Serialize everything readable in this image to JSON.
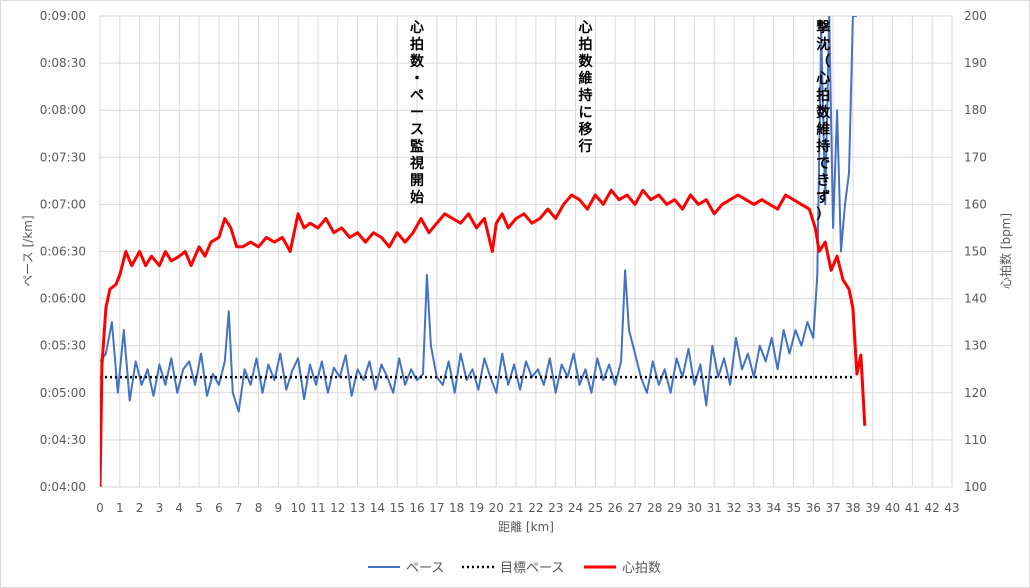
{
  "chart_data": {
    "type": "line",
    "xlabel": "距離 [km]",
    "ylabel_left": "ペース [/km]",
    "ylabel_right": "心拍数 [bpm]",
    "xlim": [
      0,
      43
    ],
    "x_ticks": [
      0,
      1,
      2,
      3,
      4,
      5,
      6,
      7,
      8,
      9,
      10,
      11,
      12,
      13,
      14,
      15,
      16,
      17,
      18,
      19,
      20,
      21,
      22,
      23,
      24,
      25,
      26,
      27,
      28,
      29,
      30,
      31,
      32,
      33,
      34,
      35,
      36,
      37,
      38,
      39,
      40,
      41,
      42,
      43
    ],
    "ylim_left_seconds": [
      240,
      540
    ],
    "y_ticks_left": [
      "0:04:00",
      "0:04:30",
      "0:05:00",
      "0:05:30",
      "0:06:00",
      "0:06:30",
      "0:07:00",
      "0:07:30",
      "0:08:00",
      "0:08:30",
      "0:09:00"
    ],
    "ylim_right": [
      100,
      200
    ],
    "y_ticks_right": [
      "100",
      "110",
      "120",
      "130",
      "140",
      "150",
      "160",
      "170",
      "180",
      "190",
      "200"
    ],
    "grid": true,
    "legend_position": "bottom",
    "colors": {
      "pace": "#4472c4",
      "target": "#000000",
      "hr": "#ff0000"
    },
    "series": [
      {
        "name": "ペース",
        "axis": "left",
        "x": [
          0,
          0.3,
          0.6,
          0.9,
          1.2,
          1.5,
          1.8,
          2.1,
          2.4,
          2.7,
          3,
          3.3,
          3.6,
          3.9,
          4.2,
          4.5,
          4.8,
          5.1,
          5.4,
          5.7,
          6,
          6.3,
          6.5,
          6.7,
          7,
          7.3,
          7.6,
          7.9,
          8.2,
          8.5,
          8.8,
          9.1,
          9.4,
          9.7,
          10,
          10.3,
          10.6,
          10.9,
          11.2,
          11.5,
          11.8,
          12.1,
          12.4,
          12.7,
          13,
          13.3,
          13.6,
          13.9,
          14.2,
          14.5,
          14.8,
          15.1,
          15.4,
          15.7,
          16,
          16.3,
          16.5,
          16.7,
          17,
          17.3,
          17.6,
          17.9,
          18.2,
          18.5,
          18.8,
          19.1,
          19.4,
          19.7,
          20,
          20.3,
          20.6,
          20.9,
          21.2,
          21.5,
          21.8,
          22.1,
          22.4,
          22.7,
          23,
          23.3,
          23.6,
          23.9,
          24.2,
          24.5,
          24.8,
          25.1,
          25.4,
          25.7,
          26,
          26.3,
          26.5,
          26.7,
          27,
          27.3,
          27.6,
          27.9,
          28.2,
          28.5,
          28.8,
          29.1,
          29.4,
          29.7,
          30,
          30.3,
          30.6,
          30.9,
          31.2,
          31.5,
          31.8,
          32.1,
          32.4,
          32.7,
          33,
          33.3,
          33.6,
          33.9,
          34.2,
          34.5,
          34.8,
          35.1,
          35.4,
          35.7,
          36,
          36.2,
          36.4,
          36.6,
          36.8,
          37,
          37.2,
          37.4,
          37.6,
          37.8,
          38,
          38.2
        ],
        "values_mmss": [
          "5:20",
          "5:25",
          "5:45",
          "5:00",
          "5:40",
          "4:55",
          "5:20",
          "5:05",
          "5:15",
          "4:58",
          "5:18",
          "5:05",
          "5:22",
          "5:00",
          "5:15",
          "5:20",
          "5:05",
          "5:25",
          "4:58",
          "5:12",
          "5:05",
          "5:20",
          "5:52",
          "5:00",
          "4:48",
          "5:15",
          "5:05",
          "5:22",
          "5:00",
          "5:18",
          "5:08",
          "5:25",
          "5:02",
          "5:14",
          "5:22",
          "4:56",
          "5:18",
          "5:05",
          "5:20",
          "5:00",
          "5:16",
          "5:10",
          "5:24",
          "4:58",
          "5:15",
          "5:08",
          "5:20",
          "5:02",
          "5:18",
          "5:10",
          "5:00",
          "5:22",
          "5:05",
          "5:15",
          "5:08",
          "5:12",
          "6:15",
          "5:30",
          "5:10",
          "5:05",
          "5:20",
          "5:00",
          "5:25",
          "5:08",
          "5:15",
          "5:02",
          "5:22",
          "5:10",
          "5:00",
          "5:25",
          "5:05",
          "5:18",
          "5:02",
          "5:20",
          "5:10",
          "5:15",
          "5:05",
          "5:22",
          "5:00",
          "5:18",
          "5:10",
          "5:25",
          "5:05",
          "5:15",
          "5:00",
          "5:22",
          "5:08",
          "5:18",
          "5:05",
          "5:20",
          "6:18",
          "5:40",
          "5:25",
          "5:10",
          "5:00",
          "5:20",
          "5:05",
          "5:15",
          "5:00",
          "5:22",
          "5:10",
          "5:28",
          "5:05",
          "5:18",
          "4:52",
          "5:30",
          "5:10",
          "5:22",
          "5:05",
          "5:35",
          "5:15",
          "5:25",
          "5:10",
          "5:30",
          "5:20",
          "5:35",
          "5:15",
          "5:40",
          "5:25",
          "5:40",
          "5:30",
          "5:45",
          "5:35",
          "6:15",
          "8:50",
          "7:00",
          "9:00",
          "6:45",
          "8:00",
          "6:30",
          "7:00",
          "7:20",
          "9:00",
          "9:00"
        ]
      },
      {
        "name": "目標ペース",
        "axis": "left",
        "x": [
          0,
          38
        ],
        "values_mmss": [
          "5:10",
          "5:10"
        ]
      },
      {
        "name": "心拍数",
        "axis": "right",
        "x": [
          0,
          0.1,
          0.3,
          0.5,
          0.8,
          1,
          1.3,
          1.6,
          2,
          2.3,
          2.6,
          3,
          3.3,
          3.6,
          4,
          4.3,
          4.6,
          5,
          5.3,
          5.6,
          6,
          6.3,
          6.6,
          6.9,
          7.2,
          7.6,
          8,
          8.4,
          8.8,
          9.2,
          9.6,
          10,
          10.3,
          10.6,
          11,
          11.4,
          11.8,
          12.2,
          12.6,
          13,
          13.4,
          13.8,
          14.2,
          14.6,
          15,
          15.4,
          15.8,
          16.2,
          16.6,
          17,
          17.4,
          17.8,
          18.2,
          18.6,
          19,
          19.4,
          19.8,
          20,
          20.3,
          20.6,
          21,
          21.4,
          21.8,
          22.2,
          22.6,
          23,
          23.4,
          23.8,
          24.2,
          24.6,
          25,
          25.4,
          25.8,
          26.2,
          26.6,
          27,
          27.4,
          27.8,
          28.2,
          28.6,
          29,
          29.4,
          29.8,
          30.2,
          30.6,
          31,
          31.4,
          31.8,
          32.2,
          32.6,
          33,
          33.4,
          33.8,
          34.2,
          34.6,
          35,
          35.4,
          35.8,
          36.1,
          36.3,
          36.6,
          36.9,
          37.2,
          37.5,
          37.8,
          38,
          38.2,
          38.4,
          38.6
        ],
        "values": [
          100,
          126,
          138,
          142,
          143,
          145,
          150,
          147,
          150,
          147,
          149,
          147,
          150,
          148,
          149,
          150,
          147,
          151,
          149,
          152,
          153,
          157,
          155,
          151,
          151,
          152,
          151,
          153,
          152,
          153,
          150,
          158,
          155,
          156,
          155,
          157,
          154,
          155,
          153,
          154,
          152,
          154,
          153,
          151,
          154,
          152,
          154,
          157,
          154,
          156,
          158,
          157,
          156,
          158,
          155,
          157,
          150,
          156,
          158,
          155,
          157,
          158,
          156,
          157,
          159,
          157,
          160,
          162,
          161,
          159,
          162,
          160,
          163,
          161,
          162,
          160,
          163,
          161,
          162,
          160,
          161,
          159,
          162,
          160,
          161,
          158,
          160,
          161,
          162,
          161,
          160,
          161,
          160,
          159,
          162,
          161,
          160,
          159,
          155,
          150,
          152,
          146,
          149,
          144,
          142,
          138,
          124,
          128,
          113
        ]
      }
    ],
    "annotations": [
      {
        "text": "心拍数・ペース監視開始",
        "x": 16
      },
      {
        "text": "心拍数維持に移行",
        "x": 24.5
      },
      {
        "text": "撃沈（心拍数維持できず）",
        "x": 36.5
      }
    ]
  }
}
